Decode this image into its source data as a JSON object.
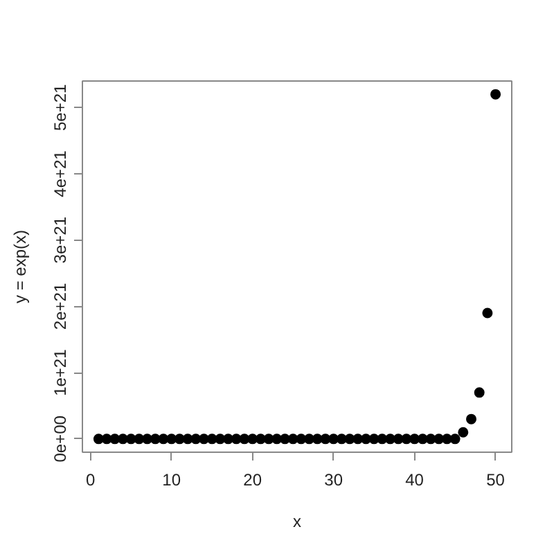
{
  "chart_data": {
    "type": "scatter",
    "xlabel": "x",
    "ylabel": "y = exp(x)",
    "x": [
      1,
      2,
      3,
      4,
      5,
      6,
      7,
      8,
      9,
      10,
      11,
      12,
      13,
      14,
      15,
      16,
      17,
      18,
      19,
      20,
      21,
      22,
      23,
      24,
      25,
      26,
      27,
      28,
      29,
      30,
      31,
      32,
      33,
      34,
      35,
      36,
      37,
      38,
      39,
      40,
      41,
      42,
      43,
      44,
      45,
      46,
      47,
      48,
      49,
      50
    ],
    "values": [
      0,
      0,
      0,
      0,
      0,
      0,
      0,
      0,
      0,
      0,
      0,
      0,
      0,
      0,
      0,
      0,
      0,
      0,
      0,
      0,
      0,
      0,
      0,
      0,
      0,
      0,
      0,
      0,
      0,
      0,
      0,
      0,
      0,
      0,
      0,
      0,
      0,
      0,
      0,
      0,
      0,
      0,
      0,
      0,
      0,
      1e+20,
      3e+20,
      7e+20,
      1.9e+21,
      5.2e+21
    ],
    "color": "#000000",
    "marker": "circle",
    "grid": false,
    "xlim": [
      -1,
      52
    ],
    "ylim": [
      -2e+20,
      5.4e+21
    ],
    "xticks": [
      0,
      10,
      20,
      30,
      40,
      50
    ],
    "yticks": [
      {
        "value": 0,
        "label": "0e+00"
      },
      {
        "value": 1e+21,
        "label": "1e+21"
      },
      {
        "value": 2e+21,
        "label": "2e+21"
      },
      {
        "value": 3e+21,
        "label": "3e+21"
      },
      {
        "value": 4e+21,
        "label": "4e+21"
      },
      {
        "value": 5e+21,
        "label": "5e+21"
      }
    ]
  }
}
